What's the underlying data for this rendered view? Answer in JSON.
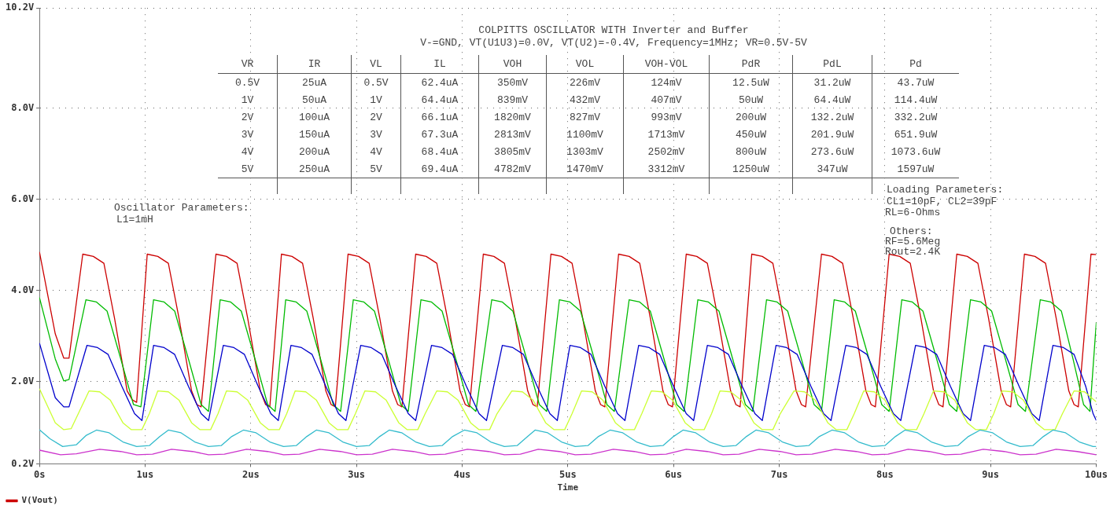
{
  "chart_data": {
    "type": "line",
    "title": "COLPITTS OSCILLATOR WITH Inverter and Buffer",
    "subtitle": "V-=GND, VT(U1U3)=0.0V, VT(U2)=-0.4V, Frequency=1MHz; VR=0.5V-5V",
    "xlabel": "Time",
    "xlim": [
      0,
      10
    ],
    "xticks": [
      {
        "value": 0,
        "label": "0s"
      },
      {
        "value": 1,
        "label": "1us"
      },
      {
        "value": 2,
        "label": "2us"
      },
      {
        "value": 3,
        "label": "3us"
      },
      {
        "value": 4,
        "label": "4us"
      },
      {
        "value": 5,
        "label": "5us"
      },
      {
        "value": 6,
        "label": "6us"
      },
      {
        "value": 7,
        "label": "7us"
      },
      {
        "value": 8,
        "label": "8us"
      },
      {
        "value": 9,
        "label": "9us"
      },
      {
        "value": 10,
        "label": "10us"
      }
    ],
    "ylim": [
      0.2,
      10.2
    ],
    "yticks": [
      {
        "value": 0.2,
        "label": "0.2V"
      },
      {
        "value": 2,
        "label": "2.0V"
      },
      {
        "value": 4,
        "label": "4.0V"
      },
      {
        "value": 6,
        "label": "6.0V"
      },
      {
        "value": 8,
        "label": "8.0V"
      },
      {
        "value": 10.2,
        "label": "10.2V"
      }
    ],
    "grid": true,
    "legend": "bottom left",
    "marker": "none",
    "line_style": "solid",
    "series": [
      {
        "color": "#cc33cc",
        "x": [
          0,
          0.2,
          0.35,
          0.57,
          0.77,
          0.92,
          1.07,
          1.25,
          1.45,
          1.6,
          1.75,
          1.96,
          2.16,
          2.31,
          2.46,
          2.65,
          2.85,
          3,
          3.15,
          3.34,
          3.54,
          3.69,
          3.84,
          4.05,
          4.25,
          4.4,
          4.55,
          4.72,
          4.92,
          5.07,
          5.22,
          5.43,
          5.63,
          5.78,
          5.93,
          6.12,
          6.32,
          6.47,
          6.62,
          6.81,
          7.01,
          7.16,
          7.31,
          7.53,
          7.73,
          7.88,
          8.03,
          8.22,
          8.42,
          8.57,
          8.72,
          8.93,
          9.13,
          9.28,
          9.43,
          9.62,
          9.82,
          10
        ],
        "values": [
          0.5,
          0.4,
          0.42,
          0.52,
          0.47,
          0.4,
          0.41,
          0.52,
          0.47,
          0.4,
          0.41,
          0.52,
          0.47,
          0.4,
          0.41,
          0.52,
          0.47,
          0.4,
          0.41,
          0.52,
          0.47,
          0.4,
          0.41,
          0.52,
          0.47,
          0.4,
          0.41,
          0.52,
          0.47,
          0.4,
          0.41,
          0.52,
          0.47,
          0.4,
          0.41,
          0.52,
          0.47,
          0.4,
          0.41,
          0.52,
          0.47,
          0.4,
          0.41,
          0.52,
          0.47,
          0.4,
          0.41,
          0.52,
          0.47,
          0.4,
          0.41,
          0.52,
          0.47,
          0.4,
          0.41,
          0.52,
          0.47,
          0.4
        ]
      },
      {
        "color": "#33bbcc",
        "x": [
          0,
          0.1,
          0.22,
          0.35,
          0.44,
          0.54,
          0.66,
          0.79,
          0.92,
          1.04,
          1.14,
          1.22,
          1.34,
          1.47,
          1.6,
          1.72,
          1.82,
          1.93,
          2.05,
          2.18,
          2.31,
          2.43,
          2.53,
          2.62,
          2.74,
          2.87,
          3,
          3.12,
          3.22,
          3.31,
          3.43,
          3.56,
          3.69,
          3.81,
          3.91,
          4.02,
          4.14,
          4.27,
          4.4,
          4.52,
          4.62,
          4.69,
          4.81,
          4.94,
          5.07,
          5.19,
          5.29,
          5.4,
          5.52,
          5.65,
          5.78,
          5.9,
          6,
          6.09,
          6.21,
          6.34,
          6.47,
          6.59,
          6.69,
          6.78,
          6.9,
          7.03,
          7.16,
          7.28,
          7.38,
          7.5,
          7.62,
          7.75,
          7.88,
          8,
          8.1,
          8.19,
          8.31,
          8.44,
          8.57,
          8.69,
          8.79,
          8.9,
          9.02,
          9.15,
          9.28,
          9.4,
          9.5,
          9.59,
          9.71,
          9.84,
          9.97,
          10
        ],
        "values": [
          0.95,
          0.75,
          0.58,
          0.62,
          0.82,
          0.94,
          0.88,
          0.68,
          0.58,
          0.6,
          0.8,
          0.94,
          0.88,
          0.68,
          0.58,
          0.6,
          0.8,
          0.94,
          0.88,
          0.68,
          0.58,
          0.6,
          0.8,
          0.94,
          0.88,
          0.68,
          0.58,
          0.6,
          0.8,
          0.94,
          0.88,
          0.68,
          0.58,
          0.6,
          0.8,
          0.94,
          0.88,
          0.68,
          0.58,
          0.6,
          0.8,
          0.94,
          0.88,
          0.68,
          0.58,
          0.6,
          0.8,
          0.94,
          0.88,
          0.68,
          0.58,
          0.6,
          0.8,
          0.94,
          0.88,
          0.68,
          0.58,
          0.6,
          0.8,
          0.94,
          0.88,
          0.68,
          0.58,
          0.6,
          0.8,
          0.94,
          0.88,
          0.68,
          0.58,
          0.6,
          0.8,
          0.94,
          0.88,
          0.68,
          0.58,
          0.6,
          0.8,
          0.94,
          0.88,
          0.68,
          0.58,
          0.6,
          0.8,
          0.94,
          0.88,
          0.68,
          0.58,
          0.58
        ]
      },
      {
        "color": "#ccff33",
        "x": [
          0,
          0.15,
          0.23,
          0.3,
          0.47,
          0.57,
          0.67,
          0.79,
          0.87,
          0.97,
          1.04,
          1.12,
          1.22,
          1.32,
          1.44,
          1.52,
          1.62,
          1.69,
          1.77,
          1.87,
          1.97,
          2.09,
          2.17,
          2.27,
          2.34,
          2.42,
          2.52,
          2.62,
          2.74,
          2.82,
          2.92,
          2.99,
          3.08,
          3.18,
          3.28,
          3.4,
          3.48,
          3.58,
          3.65,
          3.76,
          3.86,
          3.96,
          4.08,
          4.16,
          4.26,
          4.33,
          4.47,
          4.57,
          4.67,
          4.79,
          4.87,
          4.97,
          5.04,
          5.13,
          5.23,
          5.33,
          5.45,
          5.53,
          5.63,
          5.7,
          5.79,
          5.89,
          5.99,
          6.11,
          6.19,
          6.29,
          6.36,
          6.44,
          6.54,
          6.64,
          6.76,
          6.84,
          6.94,
          7.01,
          7.14,
          7.24,
          7.34,
          7.46,
          7.54,
          7.64,
          7.71,
          7.8,
          7.9,
          8,
          8.12,
          8.2,
          8.3,
          8.37,
          8.46,
          8.56,
          8.66,
          8.78,
          8.86,
          8.96,
          9.03,
          9.11,
          9.21,
          9.31,
          9.43,
          9.51,
          9.61,
          9.68,
          9.79,
          9.89,
          10
        ],
        "values": [
          1.85,
          1.1,
          0.95,
          0.97,
          1.8,
          1.78,
          1.6,
          1.1,
          0.95,
          0.95,
          1.3,
          1.8,
          1.78,
          1.6,
          1.1,
          0.95,
          0.95,
          1.3,
          1.8,
          1.78,
          1.6,
          1.1,
          0.95,
          0.95,
          1.3,
          1.8,
          1.78,
          1.6,
          1.1,
          0.95,
          0.95,
          1.3,
          1.8,
          1.78,
          1.6,
          1.1,
          0.95,
          0.95,
          1.3,
          1.8,
          1.78,
          1.6,
          1.1,
          0.95,
          0.95,
          1.3,
          1.8,
          1.78,
          1.6,
          1.1,
          0.95,
          0.95,
          1.3,
          1.8,
          1.78,
          1.6,
          1.1,
          0.95,
          0.95,
          1.3,
          1.8,
          1.78,
          1.6,
          1.1,
          0.95,
          0.95,
          1.3,
          1.8,
          1.78,
          1.6,
          1.1,
          0.95,
          0.95,
          1.3,
          1.8,
          1.78,
          1.6,
          1.1,
          0.95,
          0.95,
          1.3,
          1.8,
          1.78,
          1.6,
          1.1,
          0.95,
          0.95,
          1.3,
          1.8,
          1.78,
          1.6,
          1.1,
          0.95,
          0.95,
          1.3,
          1.8,
          1.78,
          1.6,
          1.1,
          0.95,
          0.95,
          1.3,
          1.8,
          1.78,
          1.56
        ]
      },
      {
        "color": "#0000cc",
        "x": [
          0,
          0.15,
          0.23,
          0.28,
          0.45,
          0.55,
          0.65,
          0.78,
          0.9,
          0.97,
          1.08,
          1.18,
          1.28,
          1.41,
          1.53,
          1.6,
          1.74,
          1.84,
          1.94,
          2.07,
          2.19,
          2.26,
          2.38,
          2.48,
          2.58,
          2.71,
          2.83,
          2.9,
          3.04,
          3.14,
          3.24,
          3.37,
          3.49,
          3.56,
          3.71,
          3.81,
          3.91,
          4.04,
          4.16,
          4.23,
          4.38,
          4.48,
          4.58,
          4.71,
          4.83,
          4.9,
          5.02,
          5.12,
          5.22,
          5.35,
          5.47,
          5.54,
          5.67,
          5.77,
          5.87,
          6,
          6.12,
          6.19,
          6.32,
          6.42,
          6.52,
          6.65,
          6.77,
          6.84,
          6.97,
          7.07,
          7.17,
          7.3,
          7.42,
          7.49,
          7.63,
          7.73,
          7.83,
          7.96,
          8.08,
          8.15,
          8.29,
          8.39,
          8.49,
          8.62,
          8.74,
          8.81,
          8.94,
          9.04,
          9.14,
          9.27,
          9.39,
          9.46,
          9.59,
          9.69,
          9.79,
          9.9,
          9.97,
          10
        ],
        "values": [
          2.85,
          1.65,
          1.45,
          1.45,
          2.8,
          2.75,
          2.6,
          1.9,
          1.3,
          1.15,
          2.8,
          2.75,
          2.6,
          1.9,
          1.3,
          1.15,
          2.8,
          2.75,
          2.6,
          1.9,
          1.3,
          1.15,
          2.8,
          2.75,
          2.6,
          1.9,
          1.3,
          1.15,
          2.8,
          2.75,
          2.6,
          1.9,
          1.3,
          1.15,
          2.8,
          2.75,
          2.6,
          1.9,
          1.3,
          1.15,
          2.8,
          2.75,
          2.6,
          1.9,
          1.3,
          1.15,
          2.8,
          2.75,
          2.6,
          1.9,
          1.3,
          1.15,
          2.8,
          2.75,
          2.6,
          1.9,
          1.3,
          1.15,
          2.8,
          2.75,
          2.6,
          1.9,
          1.3,
          1.15,
          2.8,
          2.75,
          2.6,
          1.9,
          1.3,
          1.15,
          2.8,
          2.75,
          2.6,
          1.9,
          1.3,
          1.15,
          2.8,
          2.75,
          2.6,
          1.9,
          1.3,
          1.15,
          2.8,
          2.75,
          2.6,
          1.9,
          1.3,
          1.15,
          2.8,
          2.75,
          2.6,
          1.9,
          1.3,
          1.15
        ]
      },
      {
        "color": "#00bb00",
        "x": [
          0,
          0.15,
          0.23,
          0.28,
          0.44,
          0.54,
          0.64,
          0.77,
          0.89,
          0.96,
          1.08,
          1.18,
          1.28,
          1.41,
          1.53,
          1.6,
          1.71,
          1.81,
          1.91,
          2.04,
          2.16,
          2.23,
          2.33,
          2.43,
          2.53,
          2.66,
          2.78,
          2.85,
          2.97,
          3.07,
          3.17,
          3.3,
          3.42,
          3.49,
          3.61,
          3.71,
          3.81,
          3.94,
          4.06,
          4.13,
          4.28,
          4.38,
          4.48,
          4.61,
          4.73,
          4.8,
          4.92,
          5.02,
          5.12,
          5.25,
          5.37,
          5.44,
          5.58,
          5.68,
          5.78,
          5.91,
          6.03,
          6.1,
          6.23,
          6.33,
          6.43,
          6.56,
          6.68,
          6.75,
          6.88,
          6.98,
          7.08,
          7.21,
          7.33,
          7.4,
          7.52,
          7.62,
          7.72,
          7.85,
          7.97,
          8.04,
          8.16,
          8.26,
          8.36,
          8.49,
          8.61,
          8.68,
          8.81,
          8.91,
          9.01,
          9.14,
          9.26,
          9.33,
          9.47,
          9.57,
          9.67,
          9.78,
          9.88,
          9.94,
          10
        ],
        "values": [
          3.85,
          2.5,
          2.02,
          2.05,
          3.8,
          3.75,
          3.55,
          2.5,
          1.5,
          1.45,
          3.8,
          3.75,
          3.55,
          2.5,
          1.5,
          1.35,
          3.8,
          3.75,
          3.55,
          2.5,
          1.5,
          1.35,
          3.8,
          3.75,
          3.55,
          2.5,
          1.5,
          1.35,
          3.8,
          3.75,
          3.55,
          2.5,
          1.5,
          1.35,
          3.8,
          3.75,
          3.55,
          2.5,
          1.5,
          1.35,
          3.8,
          3.75,
          3.55,
          2.5,
          1.5,
          1.35,
          3.8,
          3.75,
          3.55,
          2.5,
          1.5,
          1.35,
          3.8,
          3.75,
          3.55,
          2.5,
          1.5,
          1.35,
          3.8,
          3.75,
          3.55,
          2.5,
          1.5,
          1.35,
          3.8,
          3.75,
          3.55,
          2.5,
          1.5,
          1.35,
          3.8,
          3.75,
          3.55,
          2.5,
          1.5,
          1.35,
          3.8,
          3.75,
          3.55,
          2.5,
          1.5,
          1.35,
          3.8,
          3.75,
          3.55,
          2.5,
          1.5,
          1.35,
          3.8,
          3.75,
          3.55,
          2.5,
          1.5,
          1.35,
          3.3
        ]
      },
      {
        "name": "V(Vout)",
        "color": "#cc0000",
        "x": [
          0,
          0.15,
          0.23,
          0.28,
          0.41,
          0.51,
          0.61,
          0.71,
          0.83,
          0.88,
          0.92,
          1.02,
          1.12,
          1.22,
          1.32,
          1.44,
          1.49,
          1.53,
          1.67,
          1.77,
          1.87,
          1.97,
          2.09,
          2.14,
          2.18,
          2.29,
          2.39,
          2.49,
          2.59,
          2.71,
          2.76,
          2.8,
          2.92,
          3.02,
          3.12,
          3.22,
          3.34,
          3.39,
          3.43,
          3.56,
          3.66,
          3.76,
          3.86,
          3.98,
          4.03,
          4.07,
          4.2,
          4.3,
          4.4,
          4.5,
          4.62,
          4.67,
          4.71,
          4.84,
          4.94,
          5.04,
          5.14,
          5.26,
          5.31,
          5.35,
          5.48,
          5.58,
          5.68,
          5.78,
          5.9,
          5.95,
          5.99,
          6.12,
          6.22,
          6.32,
          6.42,
          6.54,
          6.59,
          6.63,
          6.74,
          6.84,
          6.94,
          7.04,
          7.16,
          7.21,
          7.25,
          7.4,
          7.5,
          7.6,
          7.7,
          7.82,
          7.87,
          7.91,
          8.04,
          8.14,
          8.24,
          8.34,
          8.46,
          8.51,
          8.55,
          8.68,
          8.78,
          8.88,
          8.98,
          9.1,
          9.15,
          9.19,
          9.32,
          9.42,
          9.52,
          9.62,
          9.74,
          9.79,
          9.83,
          9.95,
          10
        ],
        "values": [
          4.85,
          3.05,
          2.52,
          2.52,
          4.8,
          4.75,
          4.6,
          3.4,
          1.8,
          1.6,
          1.55,
          4.8,
          4.75,
          4.6,
          3.4,
          1.8,
          1.5,
          1.45,
          4.8,
          4.75,
          4.6,
          3.4,
          1.8,
          1.5,
          1.45,
          4.8,
          4.75,
          4.6,
          3.4,
          1.8,
          1.5,
          1.45,
          4.8,
          4.75,
          4.6,
          3.4,
          1.8,
          1.5,
          1.45,
          4.8,
          4.75,
          4.6,
          3.4,
          1.8,
          1.5,
          1.45,
          4.8,
          4.75,
          4.6,
          3.4,
          1.8,
          1.5,
          1.45,
          4.8,
          4.75,
          4.6,
          3.4,
          1.8,
          1.5,
          1.45,
          4.8,
          4.75,
          4.6,
          3.4,
          1.8,
          1.5,
          1.45,
          4.8,
          4.75,
          4.6,
          3.4,
          1.8,
          1.5,
          1.45,
          4.8,
          4.75,
          4.6,
          3.4,
          1.8,
          1.5,
          1.45,
          4.8,
          4.75,
          4.6,
          3.4,
          1.8,
          1.5,
          1.45,
          4.8,
          4.75,
          4.6,
          3.4,
          1.8,
          1.5,
          1.45,
          4.8,
          4.75,
          4.6,
          3.4,
          1.8,
          1.5,
          1.45,
          4.8,
          4.75,
          4.6,
          3.4,
          1.8,
          1.5,
          1.45,
          4.8,
          4.79
        ]
      }
    ],
    "annotations": [
      "VR",
      "IR",
      "VL",
      "IL",
      "VOH",
      "VOL",
      "VOH-VOL",
      "PdR",
      "PdL",
      "Pd",
      "0.5V",
      "25uA",
      "0.5V",
      "62.4uA",
      "350mV",
      "226mV",
      "124mV",
      "12.5uW",
      "31.2uW",
      "43.7uW",
      "1V",
      "50uA",
      "1V",
      "64.4uA",
      "839mV",
      "432mV",
      "407mV",
      "50uW",
      "64.4uW",
      "114.4uW",
      "2V",
      "100uA",
      "2V",
      "66.1uA",
      "1820mV",
      "827mV",
      "993mV",
      "200uW",
      "132.2uW",
      "332.2uW",
      "3V",
      "150uA",
      "3V",
      "67.3uA",
      "2813mV",
      "1100mV",
      "1713mV",
      "450uW",
      "201.9uW",
      "651.9uW",
      "4V",
      "200uA",
      "4V",
      "68.4uA",
      "3805mV",
      "1303mV",
      "2502mV",
      "800uW",
      "273.6uW",
      "1073.6uW",
      "5V",
      "250uA",
      "5V",
      "69.4uA",
      "4782mV",
      "1470mV",
      "3312mV",
      "1250uW",
      "347uW",
      "1597uW",
      "Oscillator Parameters:",
      "L1=1mH",
      "Loading Parameters:",
      "CL1=10pF, CL2=39pF",
      "RL=6-Ohms",
      "Others:",
      "RF=5.6Meg",
      "Rout=2.4K"
    ]
  }
}
